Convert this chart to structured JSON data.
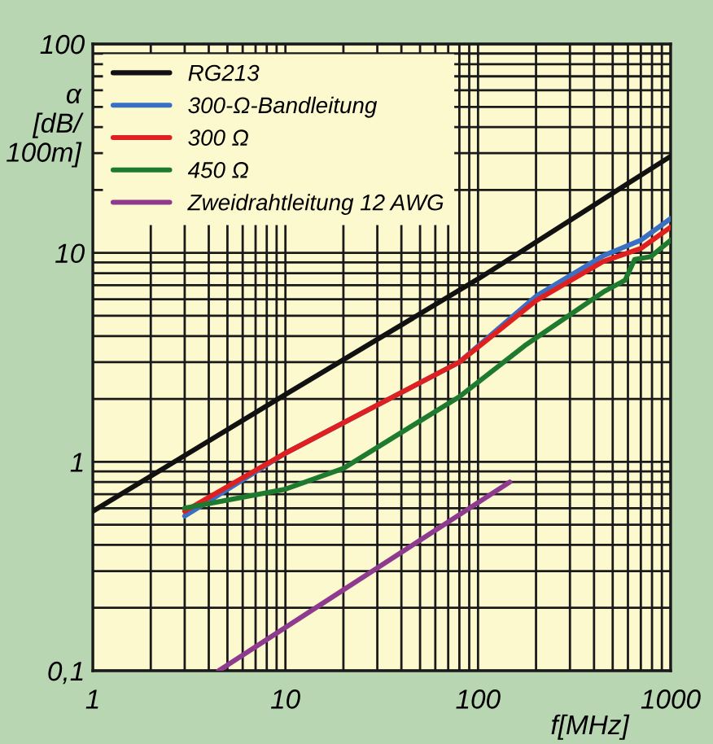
{
  "chart_data": {
    "type": "line",
    "xlabel": "f[MHz]",
    "ylabel": "α\n[dB/\n100m]",
    "log": "xy",
    "grid": true,
    "legend": "top left",
    "xlim": [
      1,
      1000
    ],
    "ylim": [
      0.1,
      100
    ],
    "xticks": [
      1,
      10,
      100,
      1000
    ],
    "yticks": [
      {
        "value": 0.1,
        "label": "0,1"
      },
      1,
      10,
      100
    ],
    "series": [
      {
        "name": "RG213",
        "color": "#111111",
        "x": [
          1,
          10,
          100,
          1000
        ],
        "values": [
          0.58,
          2.1,
          7.5,
          29
        ]
      },
      {
        "name": "300-Ω-Bandleitung",
        "color": "#3a6fc4",
        "x": [
          3,
          10,
          80,
          200,
          447,
          700,
          1000
        ],
        "values": [
          0.55,
          1.1,
          3.0,
          6.2,
          9.7,
          11.5,
          14.6
        ]
      },
      {
        "name": "300 Ω",
        "color": "#e02020",
        "x": [
          3,
          10,
          80,
          200,
          447,
          700,
          1000
        ],
        "values": [
          0.58,
          1.1,
          3.0,
          5.9,
          9.1,
          10.5,
          13.3
        ]
      },
      {
        "name": "450 Ω",
        "color": "#1e7a2e",
        "x": [
          3,
          10,
          20,
          80,
          175,
          447,
          580,
          650,
          790,
          1000
        ],
        "values": [
          0.6,
          0.74,
          0.93,
          2.05,
          3.6,
          6.5,
          7.4,
          9.3,
          9.6,
          11.5
        ]
      },
      {
        "name": "Zweidrahtleitung 12 AWG",
        "color": "#8e3a8e",
        "x": [
          4.5,
          146
        ],
        "values": [
          0.1,
          0.8
        ]
      }
    ]
  }
}
